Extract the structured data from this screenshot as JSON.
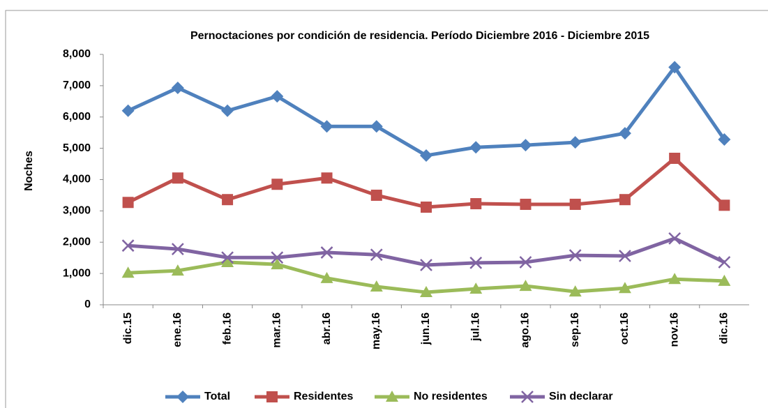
{
  "chart_data": {
    "type": "line",
    "title": "Pernoctaciones por condición de residencia. Período Diciembre 2016 - Diciembre 2015",
    "y_label": "Noches",
    "categories": [
      "dic.15",
      "ene.16",
      "feb.16",
      "mar.16",
      "abr.16",
      "may.16",
      "jun.16",
      "jul.16",
      "ago.16",
      "sep.16",
      "oct.16",
      "nov.16",
      "dic.16"
    ],
    "series": [
      {
        "name": "Total",
        "color": "#4f81bd",
        "marker": "diamond",
        "values": [
          6200,
          6930,
          6200,
          6660,
          5700,
          5700,
          4770,
          5030,
          5100,
          5190,
          5480,
          7590,
          5280
        ]
      },
      {
        "name": "Residentes",
        "color": "#c0504d",
        "marker": "square",
        "values": [
          3270,
          4050,
          3360,
          3850,
          4050,
          3500,
          3120,
          3230,
          3210,
          3210,
          3360,
          4680,
          3180
        ]
      },
      {
        "name": "No residentes",
        "color": "#9bbb59",
        "marker": "triangle",
        "values": [
          1020,
          1090,
          1360,
          1290,
          850,
          580,
          400,
          510,
          600,
          420,
          530,
          820,
          760
        ]
      },
      {
        "name": "Sin declarar",
        "color": "#8064a2",
        "marker": "x",
        "values": [
          1890,
          1780,
          1510,
          1510,
          1670,
          1600,
          1270,
          1340,
          1360,
          1580,
          1560,
          2120,
          1360
        ]
      }
    ],
    "ylim": [
      0,
      8000
    ],
    "yticks": [
      0,
      {
        "value": 1000,
        "label": "1,000"
      },
      {
        "value": 2000,
        "label": "2,000"
      },
      {
        "value": 3000,
        "label": "3,000"
      },
      {
        "value": 4000,
        "label": "4,000"
      },
      {
        "value": 5000,
        "label": "5,000"
      },
      {
        "value": 6000,
        "label": "6,000"
      },
      {
        "value": 7000,
        "label": "7,000"
      },
      {
        "value": 8000,
        "label": "8,000"
      }
    ],
    "legend": "bottom"
  }
}
